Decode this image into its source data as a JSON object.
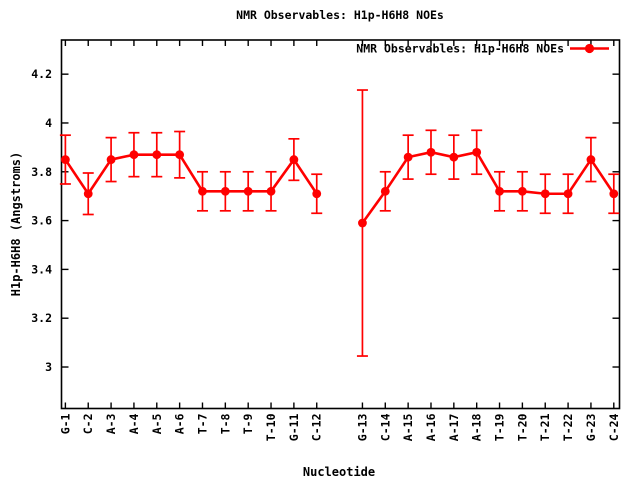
{
  "chart_data": {
    "type": "line",
    "title": "NMR Observables: H1p-H6H8 NOEs",
    "xlabel": "Nucleotide",
    "ylabel": "H1p-H6H8 (Angstroms)",
    "legend": {
      "label": "NMR Observables: H1p-H6H8 NOEs",
      "position": "top-right-inside",
      "marker": "filled-circle-on-line"
    },
    "series_color": "#ff0000",
    "axis_color": "#000000",
    "background_color": "#ffffff",
    "grid": false,
    "error_bars": true,
    "marker": "filled-circle",
    "ylim": [
      2.83,
      4.34
    ],
    "yticks": [
      3,
      3.2,
      3.4,
      3.6,
      3.8,
      4,
      4.2
    ],
    "ytick_labels": [
      "3",
      "3.2",
      "3.4",
      "3.6",
      "3.8",
      "4",
      "4.2"
    ],
    "gap_after": "C-12",
    "points": [
      {
        "label": "G-1",
        "value": 3.85,
        "err": 0.1
      },
      {
        "label": "C-2",
        "value": 3.71,
        "err": 0.085
      },
      {
        "label": "A-3",
        "value": 3.85,
        "err": 0.09
      },
      {
        "label": "A-4",
        "value": 3.87,
        "err": 0.09
      },
      {
        "label": "A-5",
        "value": 3.87,
        "err": 0.09
      },
      {
        "label": "A-6",
        "value": 3.87,
        "err": 0.095
      },
      {
        "label": "T-7",
        "value": 3.72,
        "err": 0.08
      },
      {
        "label": "T-8",
        "value": 3.72,
        "err": 0.08
      },
      {
        "label": "T-9",
        "value": 3.72,
        "err": 0.08
      },
      {
        "label": "T-10",
        "value": 3.72,
        "err": 0.08
      },
      {
        "label": "G-11",
        "value": 3.85,
        "err": 0.085
      },
      {
        "label": "C-12",
        "value": 3.71,
        "err": 0.08
      },
      {
        "label": "G-13",
        "value": 3.59,
        "err": 0.545
      },
      {
        "label": "C-14",
        "value": 3.72,
        "err": 0.08
      },
      {
        "label": "A-15",
        "value": 3.86,
        "err": 0.09
      },
      {
        "label": "A-16",
        "value": 3.88,
        "err": 0.09
      },
      {
        "label": "A-17",
        "value": 3.86,
        "err": 0.09
      },
      {
        "label": "A-18",
        "value": 3.88,
        "err": 0.09
      },
      {
        "label": "T-19",
        "value": 3.72,
        "err": 0.08
      },
      {
        "label": "T-20",
        "value": 3.72,
        "err": 0.08
      },
      {
        "label": "T-21",
        "value": 3.71,
        "err": 0.08
      },
      {
        "label": "T-22",
        "value": 3.71,
        "err": 0.08
      },
      {
        "label": "G-23",
        "value": 3.85,
        "err": 0.09
      },
      {
        "label": "C-24",
        "value": 3.71,
        "err": 0.08
      }
    ]
  }
}
